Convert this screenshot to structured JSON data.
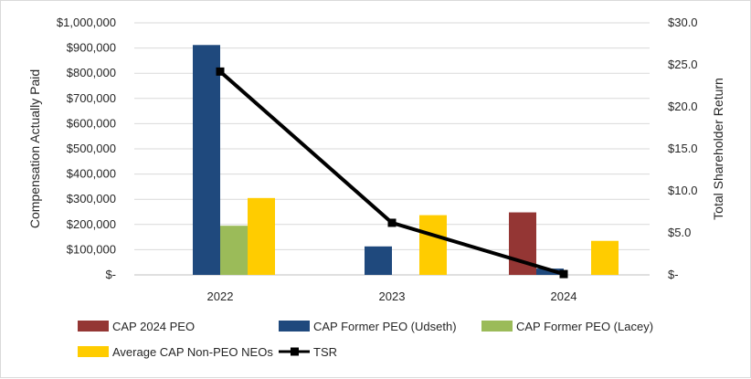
{
  "chart_data": {
    "type": "bar",
    "categories": [
      "2022",
      "2023",
      "2024"
    ],
    "series": [
      {
        "name": "CAP 2024 PEO",
        "color": "#943634",
        "values": [
          null,
          null,
          248000
        ]
      },
      {
        "name": "CAP Former PEO (Udseth)",
        "color": "#1F497D",
        "values": [
          912000,
          113000,
          25000
        ]
      },
      {
        "name": "CAP Former PEO (Lacey)",
        "color": "#9BBB59",
        "values": [
          195000,
          null,
          null
        ]
      },
      {
        "name": "Average CAP Non-PEO NEOs",
        "color": "#FFCC00",
        "values": [
          305000,
          237000,
          135000
        ]
      }
    ],
    "line_series": {
      "name": "TSR",
      "color": "#000000",
      "axis": "right",
      "values": [
        24.2,
        6.2,
        0.1
      ]
    },
    "ylabel": "Compensation Actually Paid",
    "ylabel_right": "Total Shareholder Return",
    "ylim": [
      0,
      1000000
    ],
    "ylim_right": [
      0,
      30
    ],
    "yticks": [
      {
        "value": 0,
        "label": "$-"
      },
      {
        "value": 100000,
        "label": "$100,000"
      },
      {
        "value": 200000,
        "label": "$200,000"
      },
      {
        "value": 300000,
        "label": "$300,000"
      },
      {
        "value": 400000,
        "label": "$400,000"
      },
      {
        "value": 500000,
        "label": "$500,000"
      },
      {
        "value": 600000,
        "label": "$600,000"
      },
      {
        "value": 700000,
        "label": "$700,000"
      },
      {
        "value": 800000,
        "label": "$800,000"
      },
      {
        "value": 900000,
        "label": "$900,000"
      },
      {
        "value": 1000000,
        "label": "$1,000,000"
      }
    ],
    "yticks_right": [
      {
        "value": 0,
        "label": "$-"
      },
      {
        "value": 5,
        "label": "$5.0"
      },
      {
        "value": 10,
        "label": "$10.0"
      },
      {
        "value": 15,
        "label": "$15.0"
      },
      {
        "value": 20,
        "label": "$20.0"
      },
      {
        "value": 25,
        "label": "$25.0"
      },
      {
        "value": 30,
        "label": "$30.0"
      }
    ],
    "grid": true,
    "legend_position": "bottom"
  }
}
